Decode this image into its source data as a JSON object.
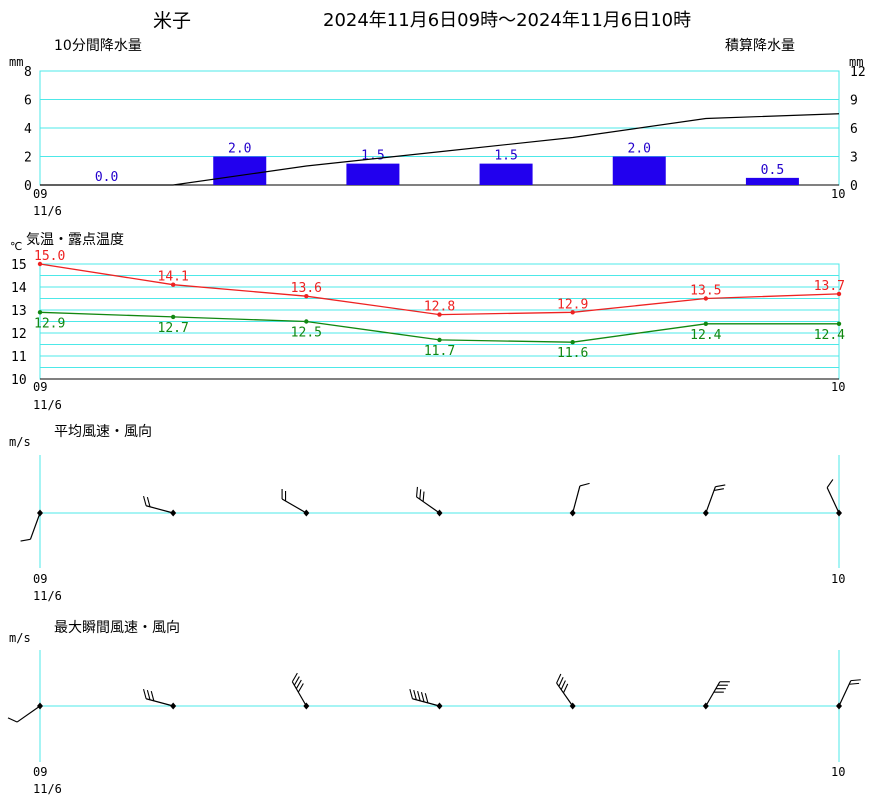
{
  "header": {
    "station": "米子",
    "period": "2024年11月6日09時～2024年11月6日10時"
  },
  "colors": {
    "grid": "#4de8e8",
    "bar": "#2200ee",
    "bar_label": "#2200cc",
    "cumulative": "#000000",
    "temperature": "#ee2222",
    "dew_point": "#118811"
  },
  "icons": {
    "wind_station": "wind-barb-icon"
  },
  "panels": {
    "precip": {
      "title": "10分間降水量",
      "right_title": "積算降水量",
      "unit_left": "mm",
      "unit_right": "mm",
      "x_start": "09",
      "x_date": "11/6",
      "x_end": "10"
    },
    "temp": {
      "title": "気温・露点温度",
      "unit": "℃",
      "x_start": "09",
      "x_date": "11/6",
      "x_end": "10"
    },
    "wind_avg": {
      "title": "平均風速・風向",
      "unit": "m/s",
      "x_start": "09",
      "x_date": "11/6",
      "x_end": "10"
    },
    "wind_max": {
      "title": "最大瞬間風速・風向",
      "unit": "m/s",
      "x_start": "09",
      "x_date": "11/6",
      "x_end": "10"
    }
  },
  "chart_data": [
    {
      "type": "bar",
      "title": "10分間降水量",
      "x": [
        "09:00",
        "09:10",
        "09:20",
        "09:30",
        "09:40",
        "09:50"
      ],
      "values": [
        0.0,
        2.0,
        1.5,
        1.5,
        2.0,
        0.5
      ],
      "value_labels": [
        "0.0",
        "2.0",
        "1.5",
        "1.5",
        "2.0",
        "0.5"
      ],
      "ylabel": "mm",
      "yticks": [
        "0",
        "2",
        "4",
        "6",
        "8"
      ],
      "ylim": [
        0,
        8
      ],
      "grid": true
    },
    {
      "type": "line",
      "title": "積算降水量",
      "x": [
        "09:00",
        "09:10",
        "09:20",
        "09:30",
        "09:40",
        "09:50",
        "10:00"
      ],
      "values": [
        0.0,
        0.0,
        2.0,
        3.5,
        5.0,
        7.0,
        7.5
      ],
      "ylabel": "mm",
      "yticks": [
        "0",
        "3",
        "6",
        "9",
        "12"
      ],
      "ylim": [
        0,
        12
      ]
    },
    {
      "type": "line",
      "title": "気温・露点温度",
      "x": [
        "09:00",
        "09:10",
        "09:20",
        "09:30",
        "09:40",
        "09:50",
        "10:00"
      ],
      "series": [
        {
          "values": [
            15.0,
            14.1,
            13.6,
            12.8,
            12.9,
            13.5,
            13.7
          ],
          "labels": [
            "15.0",
            "14.1",
            "13.6",
            "12.8",
            "12.9",
            "13.5",
            "13.7"
          ]
        },
        {
          "values": [
            12.9,
            12.7,
            12.5,
            11.7,
            11.6,
            12.4,
            12.4
          ],
          "labels": [
            "12.9",
            "12.7",
            "12.5",
            "11.7",
            "11.6",
            "12.4",
            "12.4"
          ]
        }
      ],
      "ylabel": "℃",
      "yticks": [
        "10",
        "11",
        "12",
        "13",
        "14",
        "15"
      ],
      "ylim": [
        10,
        15
      ],
      "grid": true
    },
    {
      "type": "other",
      "title": "平均風速・風向",
      "x": [
        "09:00",
        "09:10",
        "09:20",
        "09:30",
        "09:40",
        "09:50",
        "10:00"
      ],
      "direction_deg": [
        200,
        285,
        300,
        305,
        15,
        20,
        335
      ],
      "speed_ms": [
        1.5,
        4.0,
        4.0,
        5.0,
        2.5,
        3.0,
        2.0
      ],
      "ylabel": "m/s"
    },
    {
      "type": "other",
      "title": "最大瞬間風速・風向",
      "x": [
        "09:00",
        "09:10",
        "09:20",
        "09:30",
        "09:40",
        "09:50",
        "10:00"
      ],
      "direction_deg": [
        235,
        285,
        330,
        285,
        325,
        30,
        25
      ],
      "speed_ms": [
        2.5,
        5.0,
        8.0,
        10.0,
        7.0,
        7.0,
        4.0
      ],
      "ylabel": "m/s"
    }
  ]
}
